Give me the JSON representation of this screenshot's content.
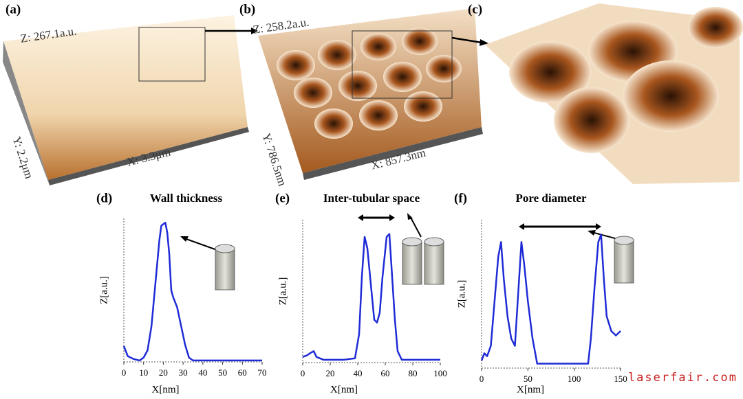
{
  "images": [
    {
      "label": "(a)",
      "z": "Z: 267.1a.u.",
      "y": "Y: 2.2μm",
      "x": "X: 3.3μm"
    },
    {
      "label": "(b)",
      "z": "Z: 258.2a.u.",
      "y": "Y: 786.5nm",
      "x": "X: 857.3nm"
    },
    {
      "label": "(c)"
    }
  ],
  "watermark": "laserfair.com",
  "chart_data": [
    {
      "type": "line",
      "label": "(d)",
      "title": "Wall thickness",
      "x_label": "X[nm]",
      "y_label": "Z[a.u.]",
      "xlim": [
        0,
        70
      ],
      "xticks": [
        0,
        10,
        20,
        30,
        40,
        50,
        60,
        70
      ],
      "ylim": [
        0,
        1
      ],
      "series": [
        {
          "color": "#1f2bd6",
          "x": [
            0,
            2,
            5,
            8,
            10,
            12,
            14,
            16,
            18,
            19,
            20,
            21,
            22,
            23,
            24,
            25,
            27,
            29,
            31,
            33,
            35,
            40,
            50,
            60,
            70
          ],
          "values": [
            0.11,
            0.04,
            0.02,
            0.01,
            0.03,
            0.08,
            0.25,
            0.55,
            0.85,
            0.95,
            0.96,
            0.97,
            0.9,
            0.75,
            0.5,
            0.45,
            0.38,
            0.25,
            0.12,
            0.03,
            0.01,
            0.01,
            0.01,
            0.01,
            0.01
          ]
        }
      ]
    },
    {
      "type": "line",
      "label": "(e)",
      "title": "Inter-tubular space",
      "x_label": "X[nm]",
      "y_label": "Z[a.u.]",
      "xlim": [
        0,
        100
      ],
      "xticks": [
        0,
        20,
        40,
        60,
        80,
        100
      ],
      "ylim": [
        0,
        1
      ],
      "series": [
        {
          "color": "#1f2bd6",
          "x": [
            0,
            3,
            6,
            8,
            10,
            15,
            20,
            30,
            38,
            41,
            43,
            45,
            47,
            50,
            52,
            54,
            56,
            58,
            61,
            63,
            65,
            67,
            69,
            72,
            80,
            100
          ],
          "values": [
            0.04,
            0.05,
            0.07,
            0.08,
            0.04,
            0.02,
            0.02,
            0.02,
            0.03,
            0.2,
            0.6,
            0.88,
            0.8,
            0.5,
            0.3,
            0.28,
            0.35,
            0.6,
            0.88,
            0.9,
            0.6,
            0.3,
            0.08,
            0.02,
            0.02,
            0.02
          ]
        }
      ]
    },
    {
      "type": "line",
      "label": "(f)",
      "title": "Pore diameter",
      "x_label": "X[nm]",
      "y_label": "Z[a.u.]",
      "xlim": [
        0,
        150
      ],
      "xticks": [
        0,
        50,
        100,
        150
      ],
      "ylim": [
        0,
        1
      ],
      "series": [
        {
          "color": "#1f2bd6",
          "x": [
            0,
            3,
            6,
            10,
            14,
            18,
            21,
            24,
            28,
            32,
            36,
            40,
            43,
            46,
            50,
            55,
            60,
            80,
            100,
            115,
            118,
            122,
            126,
            129,
            132,
            135,
            140,
            145,
            150
          ],
          "values": [
            0.05,
            0.1,
            0.08,
            0.15,
            0.45,
            0.75,
            0.85,
            0.6,
            0.35,
            0.2,
            0.15,
            0.55,
            0.85,
            0.7,
            0.45,
            0.2,
            0.03,
            0.03,
            0.03,
            0.03,
            0.2,
            0.55,
            0.85,
            0.9,
            0.6,
            0.35,
            0.25,
            0.22,
            0.25
          ]
        }
      ]
    }
  ]
}
